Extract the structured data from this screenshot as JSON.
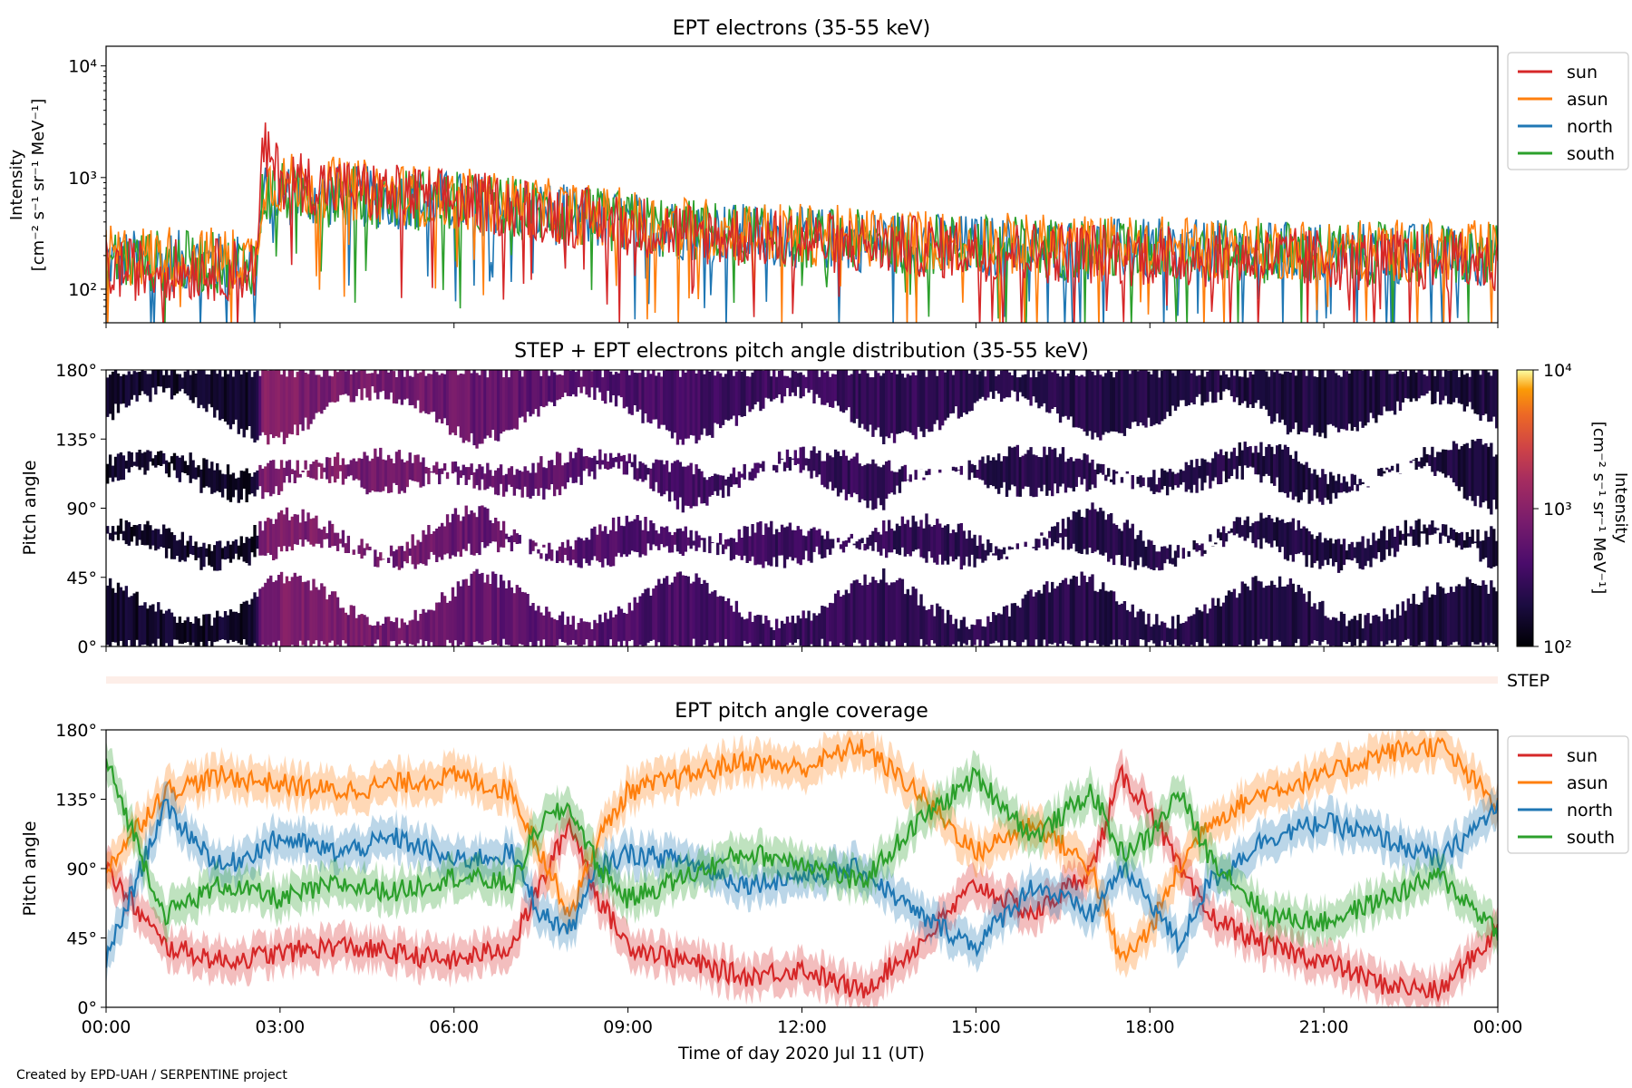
{
  "colors": {
    "sun": "#d62728",
    "asun": "#ff7f0e",
    "north": "#1f77b4",
    "south": "#2ca02c"
  },
  "footer": "Created by EPD-UAH / SERPENTINE project",
  "chart_data": [
    {
      "id": "intensity",
      "type": "line",
      "title": "EPT electrons (35-55 keV)",
      "ylabel": [
        "Intensity",
        "[cm⁻² s⁻¹ sr⁻¹ MeV⁻¹]"
      ],
      "yscale": "log",
      "ylim": [
        50,
        15000
      ],
      "yticks": [
        {
          "value": 100,
          "label": "10²"
        },
        {
          "value": 1000,
          "label": "10³"
        },
        {
          "value": 10000,
          "label": "10⁴"
        }
      ],
      "xlim": [
        "00:00",
        "24:00"
      ],
      "legend": "right",
      "series": [
        {
          "name": "sun",
          "x_hours": [
            0,
            1,
            2,
            2.6,
            2.7,
            3,
            4,
            5,
            6,
            7,
            8,
            9,
            10,
            11,
            12,
            13,
            14,
            15,
            16,
            17,
            18,
            19,
            20,
            21,
            22,
            23,
            24
          ],
          "values": [
            150,
            150,
            150,
            150,
            1800,
            1000,
            800,
            700,
            620,
            550,
            450,
            380,
            320,
            290,
            270,
            250,
            240,
            225,
            215,
            210,
            200,
            195,
            190,
            185,
            180,
            175,
            170
          ]
        },
        {
          "name": "asun",
          "x_hours": [
            0,
            1,
            2,
            2.6,
            2.7,
            3,
            4,
            5,
            6,
            7,
            8,
            9,
            10,
            11,
            12,
            13,
            14,
            15,
            16,
            17,
            18,
            19,
            20,
            21,
            22,
            23,
            24
          ],
          "values": [
            200,
            200,
            190,
            190,
            900,
            900,
            800,
            720,
            650,
            580,
            480,
            420,
            360,
            330,
            310,
            290,
            275,
            262,
            250,
            245,
            240,
            235,
            230,
            228,
            225,
            220,
            215
          ]
        },
        {
          "name": "north",
          "x_hours": [
            0,
            1,
            2,
            2.6,
            2.7,
            3,
            4,
            5,
            6,
            7,
            8,
            9,
            10,
            11,
            12,
            13,
            14,
            15,
            16,
            17,
            18,
            19,
            20,
            21,
            22,
            23,
            24
          ],
          "values": [
            180,
            180,
            170,
            170,
            700,
            700,
            680,
            650,
            600,
            540,
            450,
            390,
            340,
            310,
            290,
            270,
            255,
            245,
            235,
            230,
            225,
            220,
            215,
            212,
            208,
            205,
            200
          ]
        },
        {
          "name": "south",
          "x_hours": [
            0,
            1,
            2,
            2.6,
            2.7,
            3,
            4,
            5,
            6,
            7,
            8,
            9,
            10,
            11,
            12,
            13,
            14,
            15,
            16,
            17,
            18,
            19,
            20,
            21,
            22,
            23,
            24
          ],
          "values": [
            180,
            180,
            170,
            170,
            700,
            720,
            680,
            650,
            600,
            540,
            450,
            390,
            340,
            310,
            290,
            270,
            255,
            245,
            235,
            230,
            225,
            220,
            215,
            212,
            208,
            205,
            200
          ]
        }
      ]
    },
    {
      "id": "pad",
      "type": "heatmap",
      "title": "STEP + EPT electrons pitch angle distribution (35-55 keV)",
      "ylabel": "Pitch angle",
      "ylim": [
        0,
        180
      ],
      "yticks": [
        "0°",
        "45°",
        "90°",
        "135°",
        "180°"
      ],
      "xlim": [
        "00:00",
        "24:00"
      ],
      "colorbar": {
        "label": [
          "Intensity",
          "[cm⁻² s⁻¹ sr⁻¹ MeV⁻¹]"
        ],
        "scale": "log",
        "range": [
          100,
          10000
        ],
        "ticks": [
          "10²",
          "10³",
          "10⁴"
        ],
        "colormap": "inferno"
      },
      "intensity_profile": {
        "x_hours": [
          0,
          2.6,
          2.7,
          3,
          5,
          7,
          9,
          12,
          15,
          18,
          21,
          24
        ],
        "values": [
          150,
          150,
          900,
          850,
          700,
          560,
          400,
          300,
          250,
          220,
          200,
          190
        ]
      }
    },
    {
      "id": "step",
      "type": "bar",
      "label": "STEP"
    },
    {
      "id": "coverage",
      "type": "line",
      "title": "EPT pitch angle coverage",
      "ylabel": "Pitch angle",
      "xlabel": "Time of day 2020 Jul 11 (UT)",
      "ylim": [
        0,
        180
      ],
      "yticks": [
        "0°",
        "45°",
        "90°",
        "135°",
        "180°"
      ],
      "xlim": [
        "00:00",
        "24:00"
      ],
      "xticks": [
        "00:00",
        "03:00",
        "06:00",
        "09:00",
        "12:00",
        "15:00",
        "18:00",
        "21:00",
        "00:00"
      ],
      "legend": "right",
      "band_halfwidth_deg": 12,
      "series": [
        {
          "name": "sun",
          "x_hours": [
            0,
            1,
            2,
            3,
            4,
            5,
            6,
            7,
            7.5,
            8,
            8.5,
            9,
            10,
            11,
            12,
            13,
            14,
            15,
            16,
            17,
            17.5,
            18,
            18.5,
            19,
            20,
            21,
            22,
            23,
            24
          ],
          "values": [
            90,
            40,
            30,
            35,
            40,
            35,
            30,
            40,
            80,
            120,
            70,
            40,
            30,
            20,
            25,
            10,
            40,
            80,
            60,
            90,
            150,
            130,
            90,
            60,
            40,
            30,
            15,
            10,
            50
          ]
        },
        {
          "name": "asun",
          "x_hours": [
            0,
            1,
            2,
            3,
            4,
            5,
            6,
            7,
            7.5,
            8,
            8.5,
            9,
            10,
            11,
            12,
            13,
            14,
            15,
            16,
            17,
            17.5,
            18,
            18.5,
            19,
            20,
            21,
            22,
            23,
            24
          ],
          "values": [
            90,
            140,
            150,
            145,
            140,
            145,
            150,
            140,
            100,
            60,
            110,
            140,
            150,
            160,
            155,
            170,
            140,
            100,
            120,
            90,
            30,
            50,
            90,
            120,
            140,
            150,
            165,
            170,
            130
          ]
        },
        {
          "name": "north",
          "x_hours": [
            0,
            1,
            2,
            3,
            4,
            5,
            6,
            7,
            7.5,
            8,
            8.5,
            9,
            10,
            11,
            12,
            13,
            14,
            15,
            16,
            17,
            17.5,
            18,
            18.5,
            19,
            20,
            21,
            22,
            23,
            24
          ],
          "values": [
            30,
            130,
            90,
            110,
            100,
            110,
            95,
            100,
            60,
            50,
            90,
            100,
            95,
            80,
            85,
            90,
            60,
            40,
            80,
            60,
            90,
            70,
            40,
            80,
            110,
            120,
            110,
            95,
            130
          ]
        },
        {
          "name": "south",
          "x_hours": [
            0,
            1,
            2,
            3,
            4,
            5,
            6,
            7,
            7.5,
            8,
            8.5,
            9,
            10,
            11,
            12,
            13,
            14,
            15,
            16,
            17,
            17.5,
            18,
            18.5,
            19,
            20,
            21,
            22,
            23,
            24
          ],
          "values": [
            160,
            60,
            80,
            70,
            80,
            75,
            85,
            80,
            120,
            130,
            90,
            70,
            85,
            100,
            95,
            80,
            120,
            150,
            110,
            140,
            100,
            110,
            140,
            100,
            60,
            55,
            70,
            85,
            50
          ]
        }
      ]
    }
  ]
}
